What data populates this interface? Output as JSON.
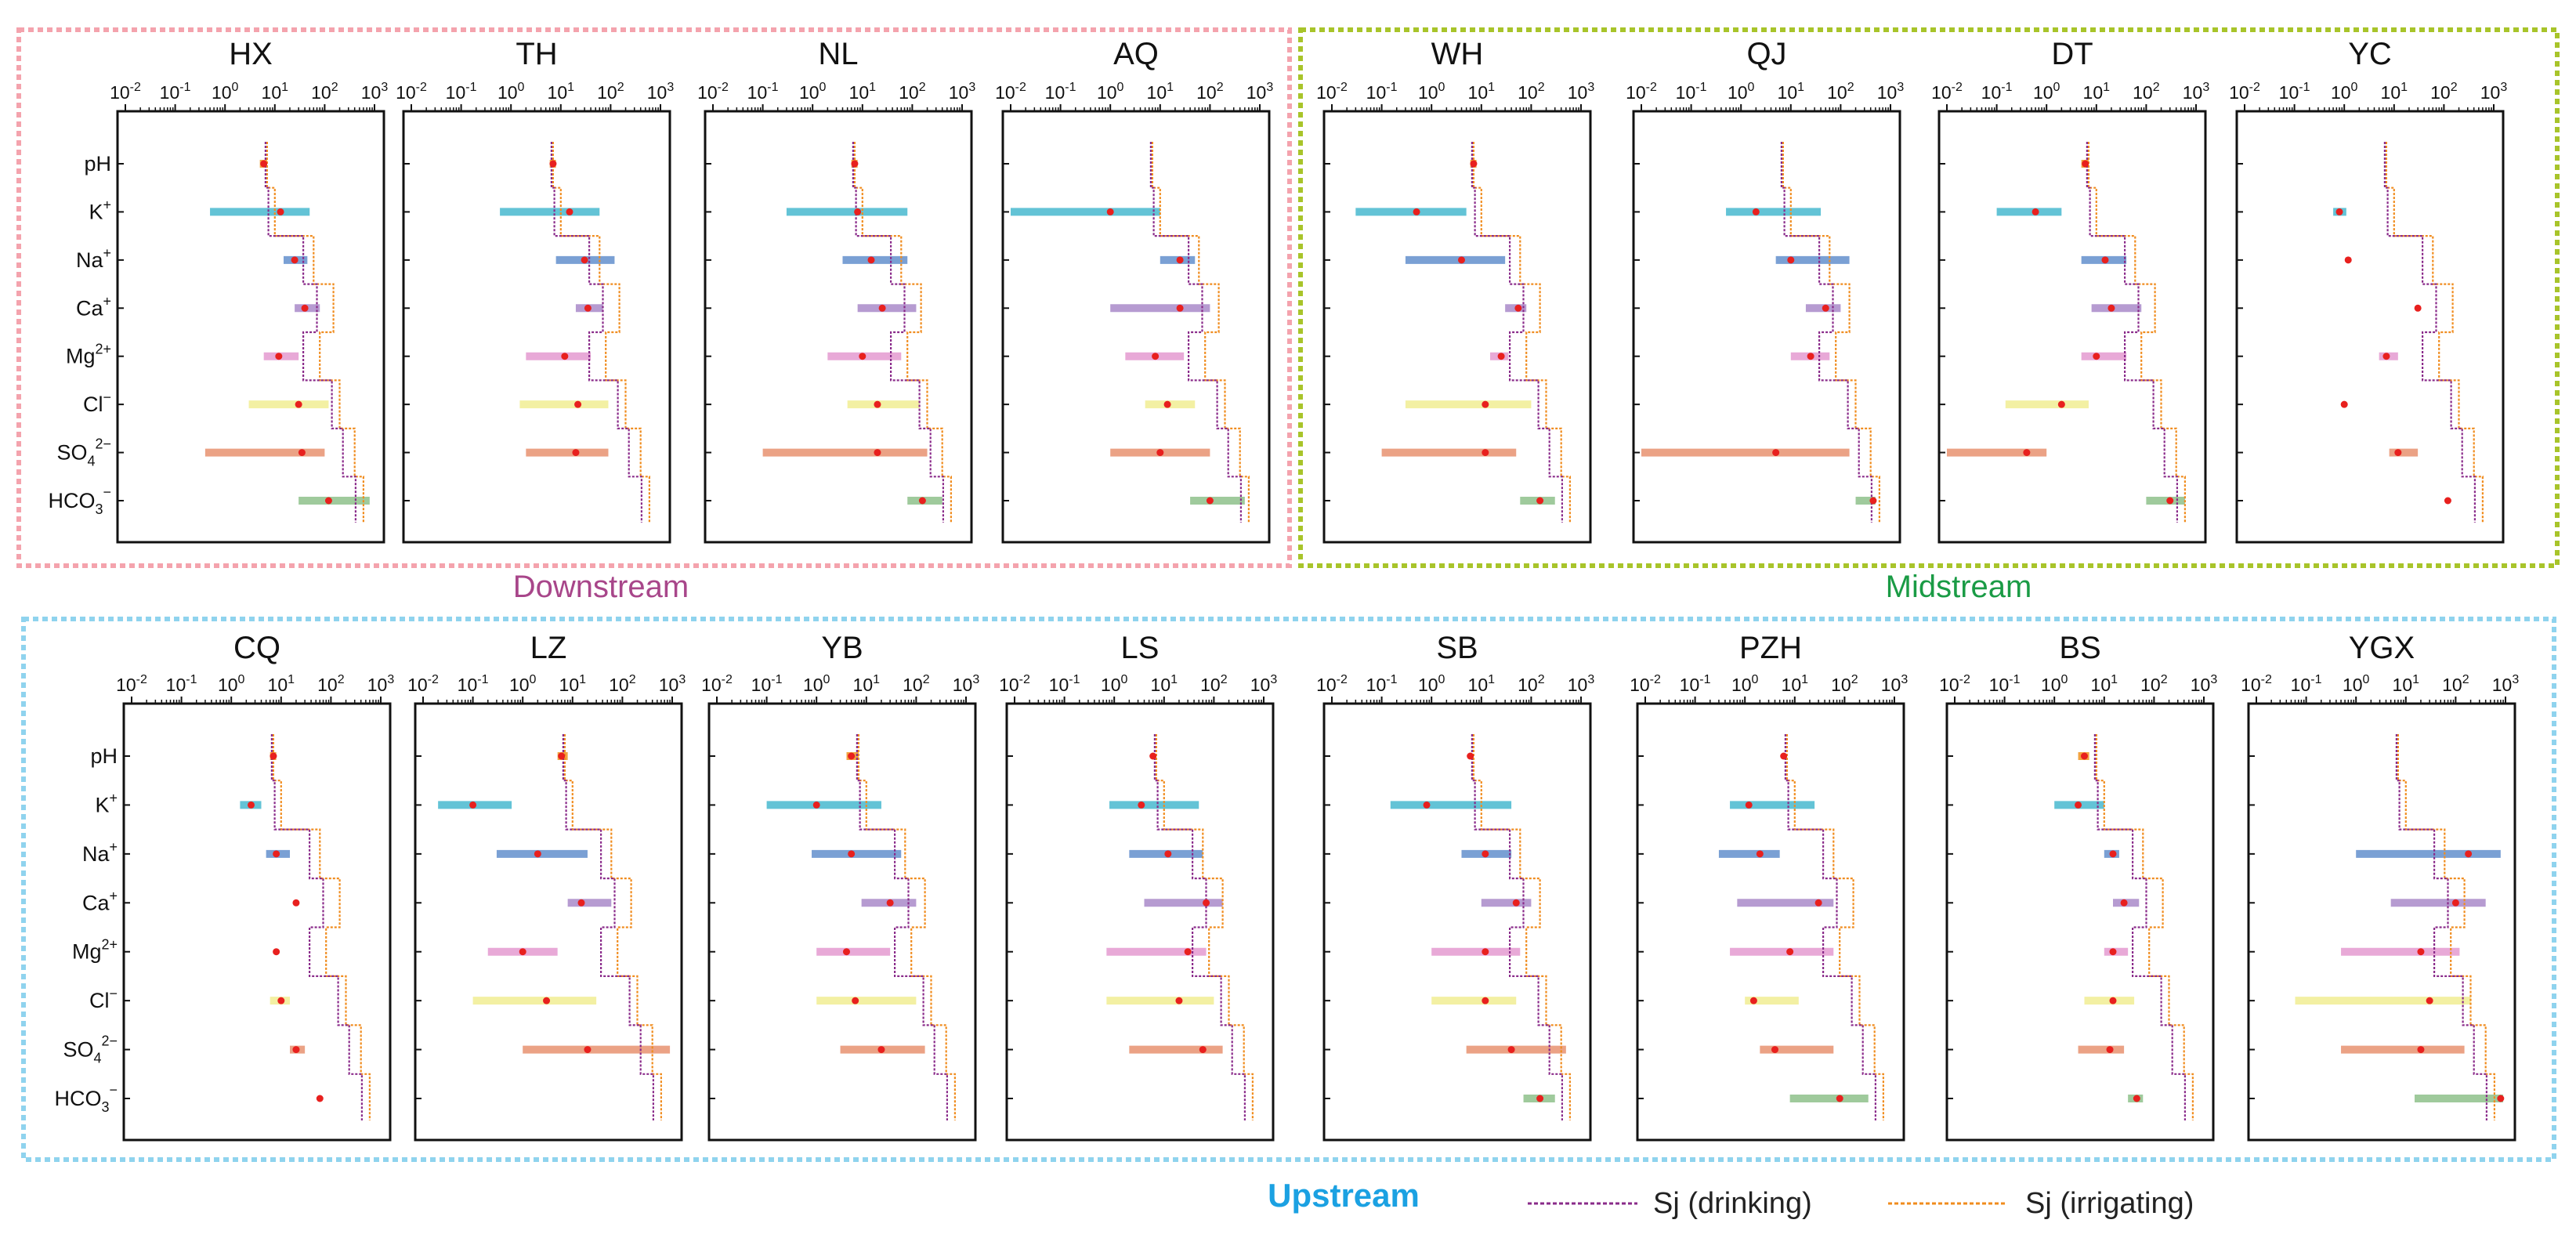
{
  "figure": {
    "groups": [
      {
        "label": "Downstream",
        "color": "#a8468a",
        "frame_color": "#f4a3ad",
        "panels": [
          "HX",
          "TH",
          "NL",
          "AQ"
        ]
      },
      {
        "label": "Midstream",
        "color": "#1a9b45",
        "frame_color": "#a8c42a",
        "panels": [
          "WH",
          "QJ",
          "DT",
          "YC"
        ]
      },
      {
        "label": "Upstream",
        "color": "#1ba1e2",
        "frame_color": "#8fd3ee",
        "panels": [
          "CQ",
          "LZ",
          "YB",
          "LS",
          "SB",
          "PZH",
          "BS",
          "YGX"
        ]
      }
    ],
    "legend": [
      {
        "label": "Sj (drinking)",
        "color": "#8a2b8a"
      },
      {
        "label": "Sj (irrigating)",
        "color": "#f08c1e"
      }
    ]
  },
  "chart_data": {
    "type": "range-plot",
    "x_scale": "log",
    "xlim": [
      0.01,
      1000
    ],
    "x_ticks": [
      {
        "base": "10",
        "exp": "-2"
      },
      {
        "base": "10",
        "exp": "-1"
      },
      {
        "base": "10",
        "exp": "0"
      },
      {
        "base": "10",
        "exp": "1"
      },
      {
        "base": "10",
        "exp": "2"
      },
      {
        "base": "10",
        "exp": "3"
      }
    ],
    "parameters": [
      {
        "base": "pH",
        "sup": "",
        "sub": ""
      },
      {
        "base": "K",
        "sup": "+",
        "sub": ""
      },
      {
        "base": "Na",
        "sup": "+",
        "sub": ""
      },
      {
        "base": "Ca",
        "sup": "+",
        "sub": ""
      },
      {
        "base": "Mg",
        "sup": "2+",
        "sub": ""
      },
      {
        "base": "Cl",
        "sup": "−",
        "sub": ""
      },
      {
        "base": "SO",
        "sup": "2−",
        "sub": "4"
      },
      {
        "base": "HCO",
        "sup": "−",
        "sub": "3"
      }
    ],
    "parameter_colors": [
      "#f2a341",
      "#63c3d6",
      "#7aa0d4",
      "#b69bd1",
      "#e8a9d7",
      "#f3f0a3",
      "#eba285",
      "#9fca9c"
    ],
    "point_color": "#e8201e",
    "panels": [
      {
        "name": "HX",
        "ranges": [
          [
            5,
            7
          ],
          [
            0.5,
            50
          ],
          [
            15,
            45
          ],
          [
            25,
            80
          ],
          [
            6,
            30
          ],
          [
            3,
            120
          ],
          [
            0.4,
            100
          ],
          [
            30,
            800
          ]
        ],
        "points": [
          6,
          13,
          25,
          40,
          12,
          30,
          35,
          120
        ]
      },
      {
        "name": "TH",
        "ranges": [
          [
            6,
            8
          ],
          [
            0.6,
            60
          ],
          [
            8,
            120
          ],
          [
            20,
            70
          ],
          [
            2,
            40
          ],
          [
            1.5,
            90
          ],
          [
            2,
            90
          ],
          [
            null,
            null
          ]
        ],
        "points": [
          7,
          15,
          30,
          35,
          12,
          22,
          20,
          null
        ]
      },
      {
        "name": "NL",
        "ranges": [
          [
            6,
            8
          ],
          [
            0.3,
            80
          ],
          [
            4,
            80
          ],
          [
            8,
            120
          ],
          [
            2,
            60
          ],
          [
            5,
            140
          ],
          [
            0.1,
            200
          ],
          [
            80,
            400
          ]
        ],
        "points": [
          7,
          8,
          15,
          25,
          10,
          20,
          20,
          160
        ]
      },
      {
        "name": "AQ",
        "ranges": [
          [
            null,
            null
          ],
          [
            0.01,
            10
          ],
          [
            10,
            50
          ],
          [
            1,
            100
          ],
          [
            2,
            30
          ],
          [
            5,
            50
          ],
          [
            1,
            100
          ],
          [
            40,
            500
          ]
        ],
        "points": [
          null,
          1,
          25,
          25,
          8,
          14,
          10,
          100
        ]
      },
      {
        "name": "WH",
        "ranges": [
          [
            6,
            8
          ],
          [
            0.03,
            5
          ],
          [
            0.3,
            30
          ],
          [
            30,
            80
          ],
          [
            15,
            35
          ],
          [
            0.3,
            100
          ],
          [
            0.1,
            50
          ],
          [
            60,
            300
          ]
        ],
        "points": [
          7,
          0.5,
          4,
          55,
          25,
          12,
          12,
          150
        ]
      },
      {
        "name": "QJ",
        "ranges": [
          [
            null,
            null
          ],
          [
            0.5,
            40
          ],
          [
            5,
            150
          ],
          [
            20,
            100
          ],
          [
            10,
            60
          ],
          [
            null,
            null
          ],
          [
            0.01,
            150
          ],
          [
            200,
            500
          ]
        ],
        "points": [
          null,
          2,
          10,
          50,
          25,
          null,
          5,
          450
        ]
      },
      {
        "name": "DT",
        "ranges": [
          [
            5,
            7
          ],
          [
            0.1,
            2
          ],
          [
            5,
            40
          ],
          [
            8,
            80
          ],
          [
            5,
            40
          ],
          [
            0.15,
            7
          ],
          [
            0.01,
            1
          ],
          [
            100,
            600
          ]
        ],
        "points": [
          6,
          0.6,
          15,
          20,
          10,
          2,
          0.4,
          300
        ]
      },
      {
        "name": "YC",
        "ranges": [
          [
            null,
            null
          ],
          [
            0.6,
            1.1
          ],
          [
            null,
            null
          ],
          [
            null,
            null
          ],
          [
            5,
            12
          ],
          [
            null,
            null
          ],
          [
            8,
            30
          ],
          [
            null,
            null
          ]
        ],
        "points": [
          null,
          0.8,
          1.2,
          30,
          7,
          1,
          12,
          120
        ]
      },
      {
        "name": "CQ",
        "ranges": [
          [
            6,
            8
          ],
          [
            1.5,
            4
          ],
          [
            5,
            15
          ],
          [
            null,
            null
          ],
          [
            null,
            null
          ],
          [
            6,
            15
          ],
          [
            15,
            30
          ],
          [
            null,
            null
          ]
        ],
        "points": [
          7,
          2.5,
          8,
          20,
          8,
          10,
          20,
          60
        ]
      },
      {
        "name": "LZ",
        "ranges": [
          [
            5,
            8
          ],
          [
            0.02,
            0.6
          ],
          [
            0.3,
            20
          ],
          [
            8,
            60
          ],
          [
            0.2,
            5
          ],
          [
            0.1,
            30
          ],
          [
            1,
            900
          ],
          [
            null,
            null
          ]
        ],
        "points": [
          6,
          0.1,
          2,
          15,
          1,
          3,
          20,
          null
        ]
      },
      {
        "name": "YB",
        "ranges": [
          [
            4,
            7
          ],
          [
            0.1,
            20
          ],
          [
            0.8,
            50
          ],
          [
            8,
            100
          ],
          [
            1,
            30
          ],
          [
            1,
            100
          ],
          [
            3,
            150
          ],
          [
            null,
            null
          ]
        ],
        "points": [
          5,
          1,
          5,
          30,
          4,
          6,
          20,
          null
        ]
      },
      {
        "name": "LS",
        "ranges": [
          [
            null,
            null
          ],
          [
            0.8,
            50
          ],
          [
            2,
            60
          ],
          [
            4,
            150
          ],
          [
            0.7,
            70
          ],
          [
            0.7,
            100
          ],
          [
            2,
            150
          ],
          [
            null,
            null
          ]
        ],
        "points": [
          6,
          3.5,
          12,
          70,
          30,
          20,
          60,
          null
        ]
      },
      {
        "name": "SB",
        "ranges": [
          [
            null,
            null
          ],
          [
            0.15,
            40
          ],
          [
            4,
            40
          ],
          [
            10,
            100
          ],
          [
            1,
            60
          ],
          [
            1,
            50
          ],
          [
            5,
            500
          ],
          [
            70,
            300
          ]
        ],
        "points": [
          6,
          0.8,
          12,
          50,
          12,
          12,
          40,
          150
        ]
      },
      {
        "name": "PZH",
        "ranges": [
          [
            null,
            null
          ],
          [
            0.5,
            25
          ],
          [
            0.3,
            5
          ],
          [
            0.7,
            60
          ],
          [
            0.5,
            60
          ],
          [
            1,
            12
          ],
          [
            2,
            60
          ],
          [
            8,
            300
          ]
        ],
        "points": [
          6,
          1.2,
          2,
          30,
          8,
          1.5,
          4,
          80
        ]
      },
      {
        "name": "BS",
        "ranges": [
          [
            3,
            5
          ],
          [
            1,
            10
          ],
          [
            10,
            20
          ],
          [
            15,
            50
          ],
          [
            10,
            30
          ],
          [
            4,
            40
          ],
          [
            3,
            25
          ],
          [
            30,
            60
          ]
        ],
        "points": [
          4,
          3,
          15,
          25,
          15,
          15,
          13,
          45
        ]
      },
      {
        "name": "YGX",
        "ranges": [
          [
            null,
            null
          ],
          [
            null,
            null
          ],
          [
            1,
            800
          ],
          [
            5,
            400
          ],
          [
            0.5,
            120
          ],
          [
            0.06,
            200
          ],
          [
            0.5,
            150
          ],
          [
            15,
            900
          ]
        ],
        "points": [
          null,
          null,
          180,
          100,
          20,
          30,
          20,
          800
        ]
      }
    ]
  }
}
